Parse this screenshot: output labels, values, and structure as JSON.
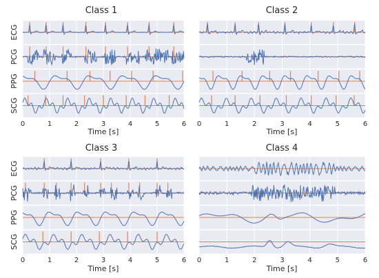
{
  "chart_data": [
    {
      "type": "line",
      "title": "Class 1",
      "xlabel": "Time [s]",
      "xlim": [
        0,
        6
      ],
      "xticks": [
        0,
        1,
        2,
        3,
        4,
        5,
        6
      ],
      "rows": [
        "ECG",
        "PCG",
        "PPG",
        "SCG"
      ],
      "markers": {
        "ECG": [
          0.26,
          0.87,
          1.5,
          2.35,
          3.08,
          3.9,
          4.7,
          5.62
        ],
        "PCG": [
          0.26,
          0.87,
          1.5,
          2.35,
          3.08,
          3.9,
          4.7,
          5.62
        ],
        "PPG": [
          0.45,
          1.65,
          2.5,
          3.25,
          4.05,
          4.85,
          5.95
        ],
        "SCG": [
          0.2,
          0.85,
          1.5,
          2.3,
          3.0,
          3.85,
          4.55,
          5.45
        ]
      },
      "pcg_bursts": [
        [
          0.2,
          0.6
        ],
        [
          0.75,
          1.2
        ],
        [
          1.45,
          1.8
        ],
        [
          2.3,
          2.75
        ],
        [
          3.05,
          3.45
        ],
        [
          3.85,
          4.35
        ],
        [
          4.55,
          5.4
        ],
        [
          5.55,
          6.0
        ]
      ],
      "colors": {
        "signal": "#4c72b0",
        "marker": "#dd8452"
      }
    },
    {
      "type": "line",
      "title": "Class 2",
      "xlabel": "Time [s]",
      "xlim": [
        0,
        6
      ],
      "xticks": [
        0,
        1,
        2,
        3,
        4,
        5,
        6
      ],
      "rows": [
        "",
        "",
        "",
        ""
      ],
      "markers": {
        "ECG": [
          0.3,
          1.3,
          2.15,
          3.1,
          4.05,
          4.85,
          5.62
        ],
        "PCG": [],
        "PPG": [
          0.5,
          1.55,
          2.55,
          3.3,
          4.3,
          5.05,
          5.8
        ],
        "SCG": [
          0.45,
          1.3,
          2.2,
          3.15,
          4.05,
          4.95,
          5.6
        ]
      },
      "pcg_bursts": [
        [
          1.7,
          2.35
        ]
      ],
      "colors": {
        "signal": "#4c72b0",
        "marker": "#dd8452"
      }
    },
    {
      "type": "line",
      "title": "Class 3",
      "xlabel": "Time [s]",
      "xlim": [
        0,
        6
      ],
      "xticks": [
        0,
        1,
        2,
        3,
        4,
        5,
        6
      ],
      "rows": [
        "ECG",
        "PCG",
        "PPG",
        "SCG"
      ],
      "markers": {
        "ECG": [
          0.8,
          1.8,
          2.9,
          3.95,
          5.0
        ],
        "PCG": [
          0.1,
          0.8,
          1.25,
          1.8,
          2.3,
          2.9,
          3.3,
          3.95,
          4.35,
          5.0,
          5.4
        ],
        "PPG": [],
        "SCG": [
          0.75,
          1.8,
          2.85,
          3.9,
          5.0
        ]
      },
      "pcg_bursts": [
        [
          0.0,
          0.3
        ],
        [
          0.75,
          0.95
        ],
        [
          1.2,
          1.4
        ],
        [
          1.75,
          1.95
        ],
        [
          2.25,
          2.45
        ],
        [
          2.85,
          3.05
        ],
        [
          3.25,
          3.5
        ],
        [
          3.9,
          4.1
        ],
        [
          4.3,
          4.5
        ],
        [
          4.95,
          5.15
        ],
        [
          5.35,
          5.55
        ]
      ],
      "colors": {
        "signal": "#4c72b0",
        "marker": "#dd8452"
      }
    },
    {
      "type": "line",
      "title": "Class 4",
      "xlabel": "Time [s]",
      "xlim": [
        0,
        6
      ],
      "xticks": [
        0,
        1,
        2,
        3,
        4,
        5,
        6
      ],
      "rows": [
        "",
        "",
        "",
        ""
      ],
      "markers": {
        "ECG": [],
        "PCG": [],
        "PPG": [],
        "SCG": []
      },
      "pcg_bursts": [
        [
          1.9,
          4.9
        ]
      ],
      "colors": {
        "signal": "#4c72b0",
        "marker": "#dd8452"
      }
    }
  ]
}
